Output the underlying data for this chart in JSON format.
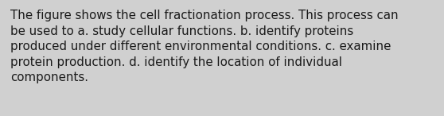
{
  "text_lines": [
    "The figure shows the cell fractionation process. This process can",
    "be used to a. study cellular functions. b. identify proteins",
    "produced under different environmental conditions. c. examine",
    "protein production. d. identify the location of individual",
    "components."
  ],
  "background_color": "#d0d0d0",
  "text_color": "#1a1a1a",
  "font_size": 10.8,
  "fig_width": 5.58,
  "fig_height": 1.46,
  "dpi": 100
}
